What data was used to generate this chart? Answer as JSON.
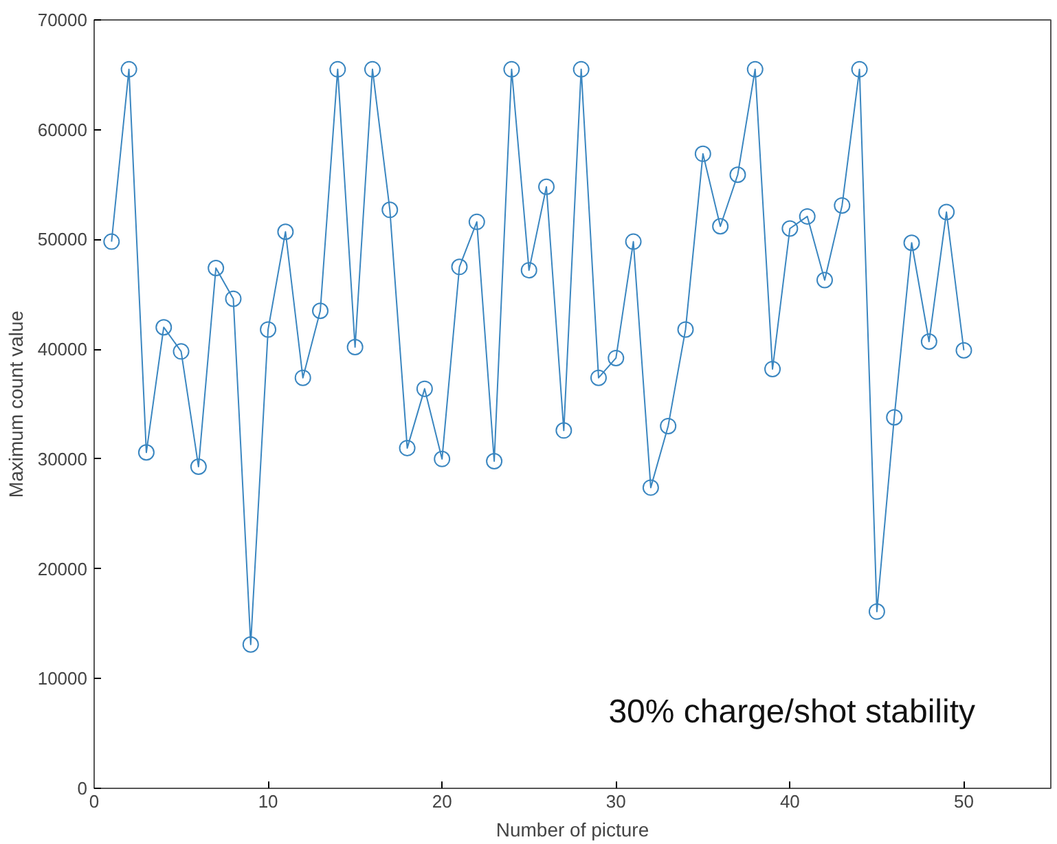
{
  "chart_data": {
    "type": "line",
    "xlabel": "Number of picture",
    "ylabel": "Maximum count value",
    "annotations": [
      "30% charge/shot stability"
    ],
    "x": [
      1,
      2,
      3,
      4,
      5,
      6,
      7,
      8,
      9,
      10,
      11,
      12,
      13,
      14,
      15,
      16,
      17,
      18,
      19,
      20,
      21,
      22,
      23,
      24,
      25,
      26,
      27,
      28,
      29,
      30,
      31,
      32,
      33,
      34,
      35,
      36,
      37,
      38,
      39,
      40,
      41,
      42,
      43,
      44,
      45,
      46,
      47,
      48,
      49,
      50
    ],
    "series": [
      {
        "color": "#3a86c0",
        "values": [
          49800,
          65500,
          30600,
          42000,
          39800,
          29300,
          47400,
          44600,
          13100,
          41800,
          50700,
          37400,
          43500,
          65500,
          40200,
          65500,
          52700,
          31000,
          36400,
          30000,
          47500,
          51600,
          29800,
          65500,
          47200,
          54800,
          32600,
          65500,
          37400,
          39200,
          49800,
          27400,
          33000,
          41800,
          57800,
          51200,
          55900,
          65500,
          38200,
          51000,
          52100,
          46300,
          53100,
          65500,
          16100,
          33800,
          49700,
          40700,
          52500,
          39900
        ]
      }
    ],
    "xlim": [
      0,
      55
    ],
    "ylim": [
      0,
      70000
    ],
    "xticks": [
      0,
      10,
      20,
      30,
      40,
      50
    ],
    "yticks": [
      0,
      10000,
      20000,
      30000,
      40000,
      50000,
      60000,
      70000
    ],
    "marker": "circle",
    "line_style": "solid",
    "grid": false
  }
}
